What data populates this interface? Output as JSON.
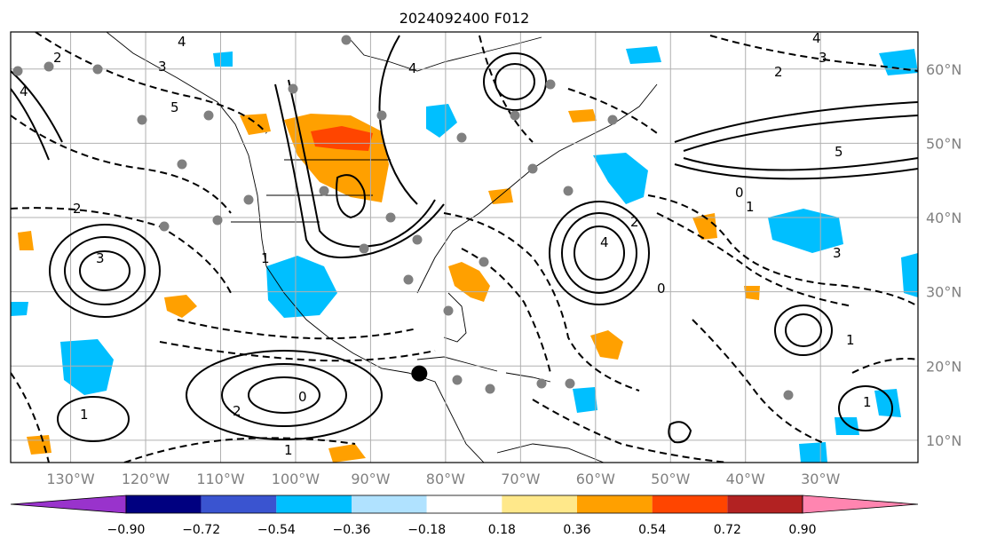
{
  "title": "2024092400 F012",
  "map": {
    "projection": "equirectangular",
    "lon_range": [
      -138,
      -17
    ],
    "lat_range": [
      7,
      65
    ],
    "lon_ticks": [
      -130,
      -120,
      -110,
      -100,
      -90,
      -80,
      -70,
      -60,
      -50,
      -40,
      -30
    ],
    "lon_labels": [
      "130°W",
      "120°W",
      "110°W",
      "100°W",
      "90°W",
      "80°W",
      "70°W",
      "60°W",
      "50°W",
      "40°W",
      "30°W"
    ],
    "lat_ticks": [
      10,
      20,
      30,
      40,
      50,
      60
    ],
    "lat_labels": [
      "10°N",
      "20°N",
      "30°N",
      "40°N",
      "50°N",
      "60°N"
    ],
    "grid": true,
    "marker": {
      "lon": -83.5,
      "lat": 19.0,
      "color": "#000000"
    },
    "station_dot_color": "#808080"
  },
  "contour_labels": [
    "2",
    "3",
    "4",
    "5",
    "1",
    "0",
    "4",
    "2",
    "3",
    "1",
    "4",
    "5",
    "2",
    "3",
    "4",
    "1",
    "0",
    "2",
    "3",
    "4",
    "1",
    "2",
    "0",
    "1",
    "1"
  ],
  "colorbar": {
    "colors": [
      "#9933cc",
      "#000080",
      "#3a54d0",
      "#00bfff",
      "#b0e2ff",
      "#ffffff",
      "#ffe88a",
      "#ffa000",
      "#ff4500",
      "#b22222",
      "#ff85b0"
    ],
    "tick_labels": [
      "−0.90",
      "−0.72",
      "−0.54",
      "−0.36",
      "−0.18",
      "0.18",
      "0.36",
      "0.54",
      "0.72",
      "0.90"
    ],
    "extend": "both"
  }
}
